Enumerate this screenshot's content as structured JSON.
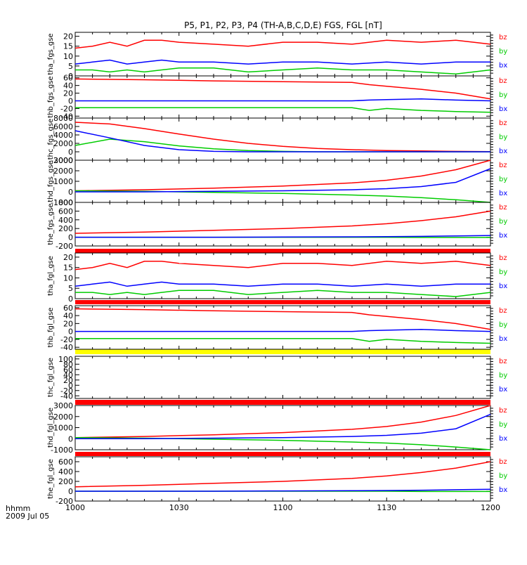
{
  "chart_data": {
    "type": "line",
    "title": "P5, P1, P2, P3, P4 (TH-A,B,C,D,E) FGS, FGL [nT]",
    "x_label_line1": "hhmm",
    "x_label_line2": "2009 Jul 05",
    "x_tick_labels": [
      "1000",
      "1030",
      "1100",
      "1130",
      "1200"
    ],
    "x_minutes": [
      0,
      30,
      60,
      90,
      120
    ],
    "x_range_minutes": [
      0,
      120
    ],
    "colors": {
      "bz": "#ff0000",
      "by": "#00cc00",
      "bx": "#0000ff",
      "flag_red": "#ff0000",
      "flag_yellow": "#ffff00"
    },
    "panels": [
      {
        "ylabel": "tha_fgs_gse",
        "yticks": [
          "20",
          "15",
          "10",
          "5",
          "0"
        ],
        "ytick_values": [
          20,
          15,
          10,
          5,
          0
        ],
        "ylim": [
          0,
          22
        ],
        "legend": [
          "bz",
          "by",
          "bx"
        ],
        "series": [
          {
            "name": "bz",
            "x": [
              0,
              5,
              10,
              15,
              20,
              25,
              30,
              40,
              50,
              60,
              70,
              80,
              90,
              100,
              110,
              120
            ],
            "y": [
              14,
              15,
              17,
              15,
              18,
              18,
              17,
              16,
              15,
              17,
              17,
              16,
              18,
              17,
              18,
              16
            ]
          },
          {
            "name": "by",
            "x": [
              0,
              5,
              10,
              15,
              20,
              25,
              30,
              40,
              50,
              60,
              70,
              80,
              90,
              100,
              110,
              120
            ],
            "y": [
              3,
              3,
              2,
              3,
              2,
              3,
              4,
              4,
              2,
              3,
              4,
              3,
              3,
              2,
              1,
              3
            ]
          },
          {
            "name": "bx",
            "x": [
              0,
              5,
              10,
              15,
              20,
              25,
              30,
              40,
              50,
              60,
              70,
              80,
              90,
              100,
              110,
              120
            ],
            "y": [
              6,
              7,
              8,
              6,
              7,
              8,
              7,
              7,
              6,
              7,
              7,
              6,
              7,
              6,
              7,
              7
            ]
          }
        ]
      },
      {
        "ylabel": "thb_fgs_gse",
        "yticks": [
          "60",
          "40",
          "20",
          "0",
          "-20",
          "-40"
        ],
        "ytick_values": [
          60,
          40,
          20,
          0,
          -20,
          -40
        ],
        "ylim": [
          -45,
          65
        ],
        "legend": [
          "bz",
          "by",
          "bx"
        ],
        "series": [
          {
            "name": "bz",
            "x": [
              0,
              20,
              40,
              60,
              80,
              85,
              90,
              100,
              110,
              120
            ],
            "y": [
              57,
              55,
              52,
              50,
              48,
              42,
              38,
              30,
              20,
              5
            ]
          },
          {
            "name": "by",
            "x": [
              0,
              20,
              40,
              60,
              80,
              85,
              90,
              100,
              110,
              120
            ],
            "y": [
              -18,
              -18,
              -18,
              -18,
              -18,
              -25,
              -20,
              -25,
              -28,
              -30
            ]
          },
          {
            "name": "bx",
            "x": [
              0,
              20,
              40,
              60,
              80,
              85,
              90,
              100,
              110,
              120
            ],
            "y": [
              0,
              0,
              0,
              0,
              0,
              2,
              3,
              5,
              2,
              0
            ]
          }
        ]
      },
      {
        "ylabel": "thc_fgs_gse",
        "yticks": [
          "8000",
          "6000",
          "4000",
          "2000",
          "0",
          "-2000"
        ],
        "ytick_values": [
          8000,
          6000,
          4000,
          2000,
          0,
          -2000
        ],
        "ylim": [
          -2000,
          8000
        ],
        "legend": [
          "bz",
          "by",
          "bx"
        ],
        "series": [
          {
            "name": "bz",
            "x": [
              0,
              10,
              20,
              30,
              40,
              50,
              60,
              70,
              80,
              90,
              100,
              110,
              120
            ],
            "y": [
              7000,
              6600,
              5500,
              4200,
              3000,
              2000,
              1300,
              800,
              500,
              300,
              200,
              100,
              50
            ]
          },
          {
            "name": "by",
            "x": [
              0,
              10,
              20,
              30,
              40,
              50,
              60,
              70,
              80,
              90,
              100,
              110,
              120
            ],
            "y": [
              1500,
              3000,
              2400,
              1400,
              700,
              300,
              100,
              0,
              0,
              0,
              0,
              0,
              0
            ]
          },
          {
            "name": "bx",
            "x": [
              0,
              10,
              20,
              30,
              40,
              50,
              60,
              70,
              80,
              90,
              100,
              110,
              120
            ],
            "y": [
              5000,
              3300,
              1500,
              500,
              100,
              0,
              0,
              0,
              0,
              0,
              0,
              0,
              0
            ]
          }
        ]
      },
      {
        "ylabel": "thd_fgs_gse",
        "yticks": [
          "3000",
          "2000",
          "1000",
          "0",
          "-1000"
        ],
        "ytick_values": [
          3000,
          2000,
          1000,
          0,
          -1000
        ],
        "ylim": [
          -1000,
          3000
        ],
        "legend": [
          "bz",
          "by",
          "bx"
        ],
        "series": [
          {
            "name": "bz",
            "x": [
              0,
              20,
              40,
              60,
              80,
              90,
              100,
              110,
              120
            ],
            "y": [
              100,
              200,
              350,
              550,
              850,
              1100,
              1500,
              2100,
              3000
            ]
          },
          {
            "name": "by",
            "x": [
              0,
              20,
              40,
              60,
              80,
              90,
              100,
              110,
              120
            ],
            "y": [
              100,
              50,
              -50,
              -150,
              -300,
              -400,
              -550,
              -750,
              -1000
            ]
          },
          {
            "name": "bx",
            "x": [
              0,
              20,
              40,
              60,
              80,
              90,
              100,
              110,
              120
            ],
            "y": [
              0,
              0,
              50,
              100,
              200,
              300,
              500,
              900,
              2200
            ]
          }
        ]
      },
      {
        "ylabel": "the_fgs_gse",
        "yticks": [
          "800",
          "600",
          "400",
          "200",
          "0",
          "-200"
        ],
        "ytick_values": [
          800,
          600,
          400,
          200,
          0,
          -200
        ],
        "ylim": [
          -200,
          800
        ],
        "legend": [
          "bz",
          "by",
          "bx"
        ],
        "series": [
          {
            "name": "bz",
            "x": [
              0,
              20,
              40,
              60,
              80,
              90,
              100,
              110,
              120
            ],
            "y": [
              90,
              120,
              160,
              200,
              260,
              310,
              380,
              470,
              600
            ]
          },
          {
            "name": "by",
            "x": [
              0,
              20,
              40,
              60,
              80,
              90,
              100,
              110,
              120
            ],
            "y": [
              0,
              0,
              0,
              0,
              0,
              0,
              -5,
              -5,
              -5
            ]
          },
          {
            "name": "bx",
            "x": [
              0,
              20,
              40,
              60,
              80,
              90,
              100,
              110,
              120
            ],
            "y": [
              0,
              0,
              0,
              5,
              10,
              15,
              20,
              30,
              40
            ]
          }
        ]
      },
      {
        "ylabel": "tha_fgl_gse",
        "yticks": [
          "20",
          "15",
          "10",
          "5",
          "0"
        ],
        "ytick_values": [
          20,
          15,
          10,
          5,
          0
        ],
        "ylim": [
          0,
          22
        ],
        "legend": [
          "bz",
          "by",
          "bx"
        ],
        "series": [
          {
            "name": "bz",
            "x": [
              0,
              5,
              10,
              15,
              20,
              25,
              30,
              40,
              50,
              60,
              70,
              80,
              90,
              100,
              110,
              120
            ],
            "y": [
              14,
              15,
              17,
              15,
              18,
              18,
              17,
              16,
              15,
              17,
              17,
              16,
              18,
              17,
              18,
              16
            ]
          },
          {
            "name": "by",
            "x": [
              0,
              5,
              10,
              15,
              20,
              25,
              30,
              40,
              50,
              60,
              70,
              80,
              90,
              100,
              110,
              120
            ],
            "y": [
              3,
              3,
              2,
              3,
              2,
              3,
              4,
              4,
              2,
              3,
              4,
              3,
              3,
              2,
              1,
              3
            ]
          },
          {
            "name": "bx",
            "x": [
              0,
              5,
              10,
              15,
              20,
              25,
              30,
              40,
              50,
              60,
              70,
              80,
              90,
              100,
              110,
              120
            ],
            "y": [
              6,
              7,
              8,
              6,
              7,
              8,
              7,
              7,
              6,
              7,
              7,
              6,
              7,
              6,
              7,
              7
            ]
          }
        ]
      },
      {
        "ylabel": "thb_fgl_gse",
        "yticks": [
          "60",
          "40",
          "20",
          "0",
          "-20",
          "-40"
        ],
        "ytick_values": [
          60,
          40,
          20,
          0,
          -20,
          -40
        ],
        "ylim": [
          -45,
          65
        ],
        "legend": [
          "bz",
          "by",
          "bx"
        ],
        "series": [
          {
            "name": "bz",
            "x": [
              0,
              20,
              40,
              60,
              80,
              85,
              90,
              100,
              110,
              120
            ],
            "y": [
              57,
              55,
              52,
              50,
              48,
              42,
              38,
              30,
              20,
              5
            ]
          },
          {
            "name": "by",
            "x": [
              0,
              20,
              40,
              60,
              80,
              85,
              90,
              100,
              110,
              120
            ],
            "y": [
              -18,
              -18,
              -18,
              -18,
              -18,
              -25,
              -20,
              -25,
              -28,
              -30
            ]
          },
          {
            "name": "bx",
            "x": [
              0,
              20,
              40,
              60,
              80,
              85,
              90,
              100,
              110,
              120
            ],
            "y": [
              0,
              0,
              0,
              0,
              0,
              2,
              3,
              5,
              2,
              0
            ]
          }
        ]
      },
      {
        "ylabel": "thc_fgl_gse",
        "yticks": [
          "100",
          "80",
          "60",
          "40",
          "20",
          "0",
          "-20",
          "-40"
        ],
        "ytick_values": [
          100,
          80,
          60,
          40,
          20,
          0,
          -20,
          -40
        ],
        "ylim": [
          -50,
          110
        ],
        "legend": [
          "bz",
          "by",
          "bx"
        ],
        "series": []
      },
      {
        "ylabel": "thd_fgl_gse",
        "yticks": [
          "3000",
          "2000",
          "1000",
          "0",
          "-1000"
        ],
        "ytick_values": [
          3000,
          2000,
          1000,
          0,
          -1000
        ],
        "ylim": [
          -1000,
          3000
        ],
        "legend": [
          "bz",
          "by",
          "bx"
        ],
        "series": [
          {
            "name": "bz",
            "x": [
              0,
              20,
              40,
              60,
              80,
              90,
              100,
              110,
              120
            ],
            "y": [
              100,
              200,
              350,
              550,
              850,
              1100,
              1500,
              2100,
              3000
            ]
          },
          {
            "name": "by",
            "x": [
              0,
              20,
              40,
              60,
              80,
              90,
              100,
              110,
              120
            ],
            "y": [
              100,
              50,
              -50,
              -150,
              -300,
              -400,
              -550,
              -750,
              -1000
            ]
          },
          {
            "name": "bx",
            "x": [
              0,
              20,
              40,
              60,
              80,
              90,
              100,
              110,
              120
            ],
            "y": [
              0,
              0,
              50,
              100,
              200,
              300,
              500,
              900,
              2200
            ]
          }
        ]
      },
      {
        "ylabel": "the_fgl_gse",
        "yticks": [
          "600",
          "400",
          "200",
          "0",
          "-200"
        ],
        "ytick_values": [
          600,
          400,
          200,
          0,
          -200
        ],
        "ylim": [
          -200,
          700
        ],
        "legend": [
          "bz",
          "by",
          "bx"
        ],
        "series": [
          {
            "name": "bz",
            "x": [
              0,
              20,
              40,
              60,
              80,
              90,
              100,
              110,
              120
            ],
            "y": [
              90,
              120,
              160,
              200,
              260,
              310,
              380,
              470,
              600
            ]
          },
          {
            "name": "by",
            "x": [
              0,
              20,
              40,
              60,
              80,
              90,
              100,
              110,
              120
            ],
            "y": [
              0,
              0,
              0,
              0,
              0,
              0,
              -5,
              -5,
              -5
            ]
          },
          {
            "name": "bx",
            "x": [
              0,
              20,
              40,
              60,
              80,
              90,
              100,
              110,
              120
            ],
            "y": [
              0,
              0,
              0,
              5,
              10,
              15,
              20,
              30,
              40
            ]
          }
        ]
      }
    ]
  }
}
